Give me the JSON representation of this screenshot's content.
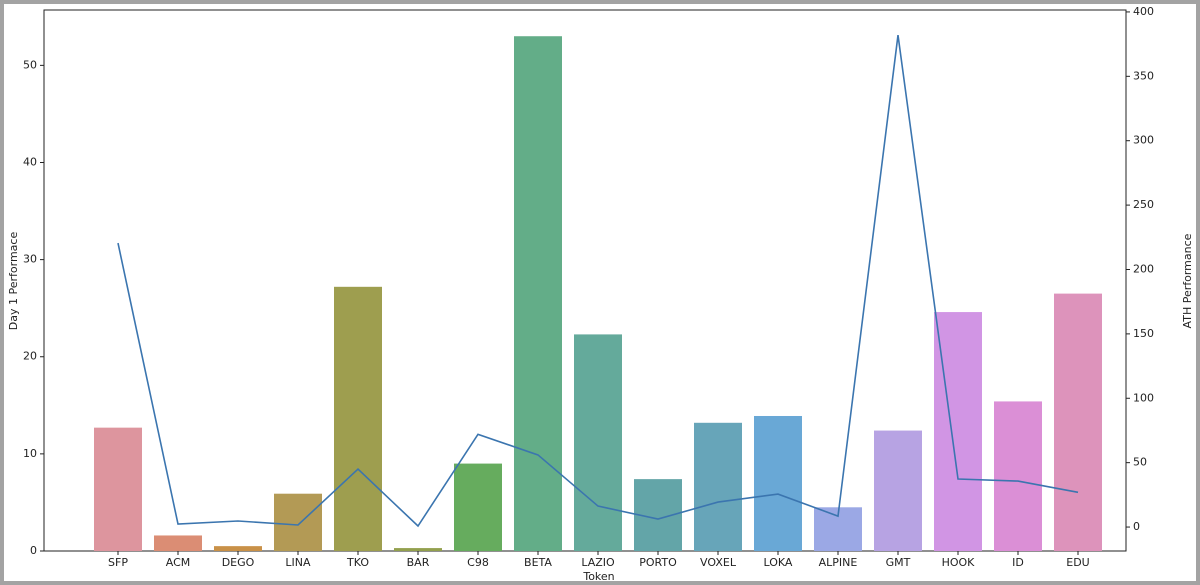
{
  "chart_data": {
    "type": "bar-line",
    "categories": [
      "SFP",
      "ACM",
      "DEGO",
      "LINA",
      "TKO",
      "BAR",
      "C98",
      "BETA",
      "LAZIO",
      "PORTO",
      "VOXEL",
      "LOKA",
      "ALPINE",
      "GMT",
      "HOOK",
      "ID",
      "EDU"
    ],
    "x_label": "Token",
    "y_label": "Day 1 Performace",
    "y2_label": "ATH Performance",
    "ylim": [
      0,
      55.7
    ],
    "yticks": [
      0,
      10,
      20,
      30,
      40,
      50
    ],
    "y2lim": [
      -18.6,
      401.5
    ],
    "y2ticks": [
      0,
      50,
      100,
      150,
      200,
      250,
      300,
      350,
      400
    ],
    "series": [
      {
        "type": "bar",
        "colors": [
          "#dd959e",
          "#db8d74",
          "#c99148",
          "#b39a55",
          "#9e9e4f",
          "#93a04e",
          "#66ac5e",
          "#63ad88",
          "#64aa9b",
          "#63a5a8",
          "#67a5b9",
          "#69a8d6",
          "#9ba8e5",
          "#b7a3e3",
          "#d195e4",
          "#db8fd6",
          "#dd93bb"
        ],
        "values": [
          12.7,
          1.6,
          0.5,
          5.9,
          27.2,
          0.3,
          9.0,
          53.0,
          22.3,
          7.4,
          13.2,
          13.9,
          4.5,
          12.4,
          24.6,
          15.4,
          26.5
        ]
      },
      {
        "type": "line",
        "axis": "y2",
        "color": "#3b75af",
        "values": [
          220.5,
          2.3,
          4.7,
          1.6,
          45,
          0.8,
          72,
          56,
          16.3,
          6.2,
          19.4,
          25.6,
          8.5,
          382,
          37.3,
          35.7,
          27
        ]
      }
    ]
  }
}
